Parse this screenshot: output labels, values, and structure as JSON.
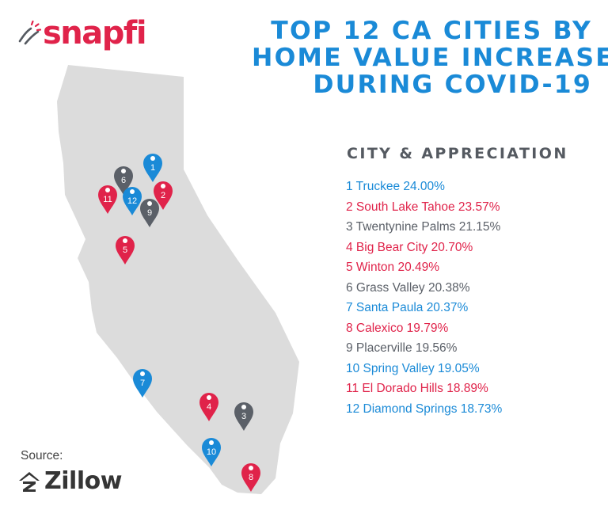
{
  "brand": {
    "name": "snapfi"
  },
  "title": {
    "lines": [
      "TOP 12 CA CITIES BY",
      "HOME VALUE INCREASE",
      "DURING COVID-19"
    ]
  },
  "legend": {
    "header": "CITY &  APPRECIATION"
  },
  "colors": {
    "blue": "#1a8ad7",
    "red": "#e0234a",
    "gray": "#5b6068",
    "state": "#dcdcdc"
  },
  "cities": [
    {
      "rank": "1",
      "text": "1 Truckee 24.00%",
      "color": "blue"
    },
    {
      "rank": "2",
      "text": "2 South Lake Tahoe 23.57%",
      "color": "red"
    },
    {
      "rank": "3",
      "text": "3 Twentynine Palms 21.15%",
      "color": "gray"
    },
    {
      "rank": "4",
      "text": "4 Big Bear City 20.70%",
      "color": "red"
    },
    {
      "rank": "5",
      "text": "5 Winton 20.49%",
      "color": "red"
    },
    {
      "rank": "6",
      "text": "6 Grass Valley 20.38%",
      "color": "gray"
    },
    {
      "rank": "7",
      "text": "7 Santa Paula 20.37%",
      "color": "blue"
    },
    {
      "rank": "8",
      "text": "8 Calexico 19.79%",
      "color": "red"
    },
    {
      "rank": "9",
      "text": "9 Placerville 19.56%",
      "color": "gray"
    },
    {
      "rank": "10",
      "text": "10 Spring Valley 19.05%",
      "color": "blue"
    },
    {
      "rank": "11",
      "text": "11 El Dorado Hills 18.89%",
      "color": "red"
    },
    {
      "rank": "12",
      "text": "12 Diamond Springs 18.73%",
      "color": "blue"
    }
  ],
  "source": {
    "label": "Source:",
    "name": "Zillow"
  }
}
